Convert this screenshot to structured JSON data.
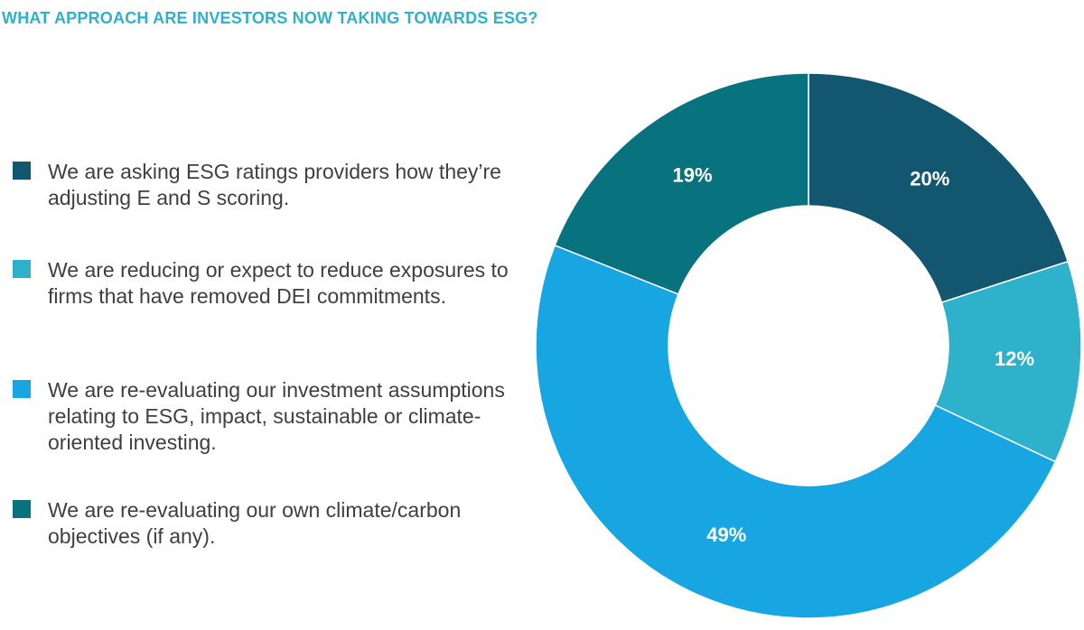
{
  "chart_data": {
    "type": "pie",
    "title": "WHAT APPROACH ARE INVESTORS NOW TAKING TOWARDS ESG?",
    "slices": [
      {
        "label": "We are asking ESG ratings providers how they’re adjusting E and S scoring.",
        "value": 20,
        "value_label": "20%",
        "color": "#12566F"
      },
      {
        "label": "We are reducing or expect to reduce exposures to firms that have removed DEI commitments.",
        "value": 12,
        "value_label": "12%",
        "color": "#2EB1CA"
      },
      {
        "label": "We are re-evaluating our investment assumptions relating to ESG, impact, sustainable or climate-oriented investing.",
        "value": 49,
        "value_label": "49%",
        "color": "#17A6E1"
      },
      {
        "label": "We are re-evaluating our own climate/carbon objectives (if any).",
        "value": 19,
        "value_label": "19%",
        "color": "#08727E"
      }
    ],
    "donut": true,
    "legend_position": "left",
    "title_color": "#2EB1CA"
  }
}
